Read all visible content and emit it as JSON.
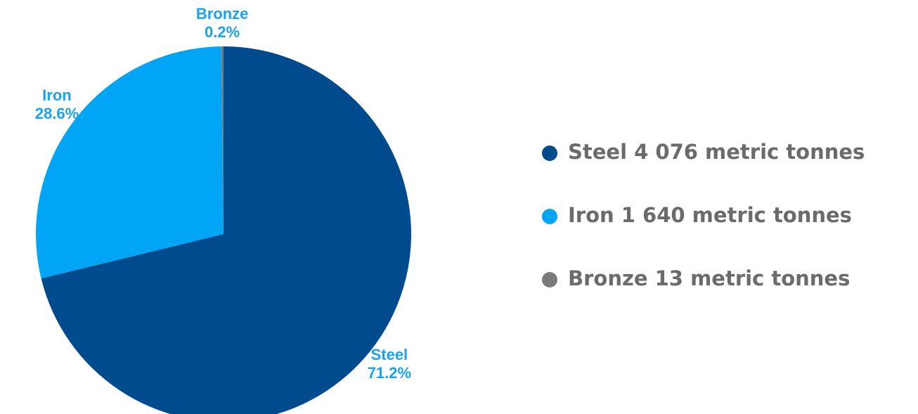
{
  "chart_data": {
    "type": "pie",
    "categories": [
      "Steel",
      "Iron",
      "Bronze"
    ],
    "values": [
      71.2,
      28.6,
      0.2
    ],
    "value_labels": [
      "71.2%",
      "28.6%",
      "0.2%"
    ],
    "colors": [
      "#004b8d",
      "#00a6f5",
      "#7a7a7a"
    ],
    "legend": [
      "Steel 4 076 metric tonnes",
      "Iron 1 640 metric tonnes",
      "Bronze 13 metric tonnes"
    ]
  }
}
